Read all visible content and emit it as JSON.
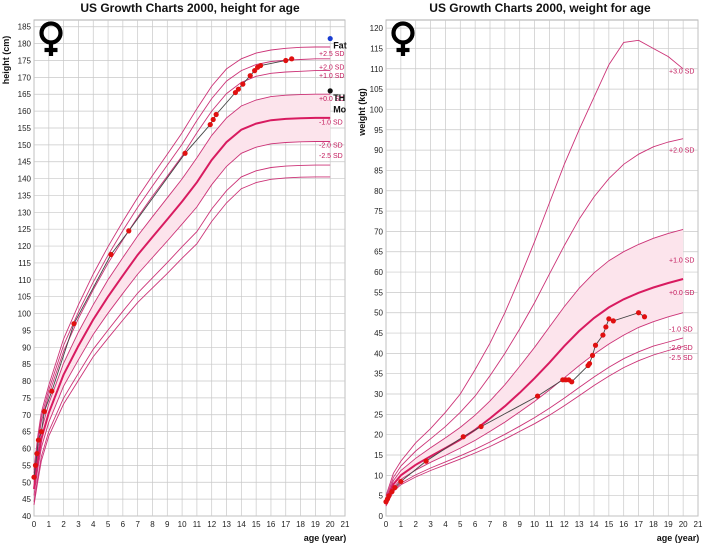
{
  "colors": {
    "curve": "#cc3377",
    "median": "#d81b60",
    "band": "#fce4ec",
    "patient_line": "#444444",
    "patient_point": "#e01010",
    "father": "#1a3dd1",
    "target": "#111111",
    "grid": "#c8c8c8"
  },
  "icons": [
    "female-symbol-icon",
    "female-symbol-icon"
  ],
  "chart_data": [
    {
      "type": "line",
      "title": "US Growth Charts 2000, height for age",
      "xlabel": "age (year)",
      "ylabel": "height (cm)",
      "xlim": [
        0,
        21
      ],
      "ylim": [
        40,
        187
      ],
      "xticks": [
        "0",
        "1",
        "2",
        "3",
        "4",
        "5",
        "6",
        "7",
        "8",
        "9",
        "10",
        "11",
        "12",
        "13",
        "14",
        "15",
        "16",
        "17",
        "18",
        "19",
        "20",
        "21"
      ],
      "yticks": [
        "40",
        "45",
        "50",
        "55",
        "60",
        "65",
        "70",
        "75",
        "80",
        "85",
        "90",
        "95",
        "100",
        "105",
        "110",
        "115",
        "120",
        "125",
        "130",
        "135",
        "140",
        "145",
        "150",
        "155",
        "160",
        "165",
        "170",
        "175",
        "180",
        "185"
      ],
      "ytick_values": [
        40,
        45,
        50,
        55,
        60,
        65,
        70,
        75,
        80,
        85,
        90,
        95,
        100,
        105,
        110,
        115,
        120,
        125,
        130,
        135,
        140,
        145,
        150,
        155,
        160,
        165,
        170,
        175,
        180,
        185
      ],
      "x": [
        0,
        0.25,
        0.5,
        1,
        2,
        3,
        4,
        5,
        6,
        7,
        8,
        9,
        10,
        11,
        12,
        13,
        14,
        15,
        16,
        17,
        18,
        19,
        20
      ],
      "series": [
        {
          "label": "+3.0 SD",
          "values": [
            53.7,
            63.5,
            70.8,
            78.8,
            92.5,
            102.6,
            111.7,
            119.8,
            127.3,
            134.4,
            140.9,
            147.2,
            153.6,
            160.7,
            167.4,
            172.5,
            175.5,
            177.2,
            178.1,
            178.6,
            178.9,
            179.0,
            179.0
          ]
        },
        {
          "label": "+2.5 SD",
          "values": [
            52.7,
            62.2,
            69.4,
            77.4,
            90.6,
            100.5,
            109.3,
            117.3,
            124.6,
            131.5,
            137.8,
            144.0,
            150.2,
            157.2,
            163.7,
            168.9,
            172.0,
            173.8,
            174.7,
            175.1,
            175.3,
            175.5,
            175.5
          ]
        },
        {
          "label": "+2.0 SD",
          "values": [
            51.8,
            61.1,
            68.1,
            76.0,
            88.8,
            98.5,
            107.0,
            114.9,
            121.9,
            128.6,
            134.8,
            140.7,
            146.7,
            153.6,
            160.0,
            165.2,
            168.5,
            170.3,
            171.2,
            171.6,
            171.8,
            172.0,
            172.0
          ]
        },
        {
          "label": "+1.0 SD",
          "values": [
            49.9,
            58.6,
            65.5,
            73.3,
            85.3,
            94.5,
            102.6,
            110.0,
            116.6,
            123.0,
            128.7,
            134.3,
            139.9,
            146.2,
            152.8,
            158.0,
            161.5,
            163.3,
            164.3,
            164.7,
            164.9,
            165.0,
            165.0
          ]
        },
        {
          "label": "+0.0 SD",
          "values": [
            48.0,
            56.2,
            62.9,
            70.6,
            81.9,
            90.4,
            98.2,
            105.0,
            111.3,
            117.4,
            122.7,
            127.9,
            133.2,
            138.9,
            145.5,
            150.8,
            154.5,
            156.3,
            157.3,
            157.7,
            157.9,
            158.0,
            158.0
          ]
        },
        {
          "label": "-1.0 SD",
          "values": [
            46.1,
            53.8,
            60.3,
            67.8,
            78.5,
            86.3,
            93.8,
            100.1,
            106.0,
            111.7,
            116.6,
            121.5,
            126.5,
            131.6,
            138.2,
            143.6,
            147.5,
            149.3,
            150.3,
            150.7,
            150.9,
            151.0,
            151.0
          ]
        },
        {
          "label": "-2.0 SD",
          "values": [
            44.2,
            51.3,
            57.7,
            65.1,
            75.0,
            82.3,
            89.4,
            95.1,
            100.7,
            106.1,
            110.6,
            115.1,
            119.8,
            124.3,
            131.0,
            136.4,
            140.5,
            142.3,
            143.3,
            143.7,
            143.9,
            144.0,
            144.0
          ]
        },
        {
          "label": "-2.5 SD",
          "values": [
            43.3,
            50.1,
            56.4,
            63.7,
            73.2,
            80.2,
            87.2,
            92.7,
            98.1,
            103.3,
            107.6,
            111.9,
            116.4,
            120.7,
            127.3,
            132.8,
            137.0,
            138.8,
            139.8,
            140.2,
            140.4,
            140.5,
            140.5
          ]
        }
      ],
      "sd_labels": [
        {
          "text": "+2.5 SD",
          "y": 177.0
        },
        {
          "text": "+2.0 SD",
          "y": 173.0
        },
        {
          "text": "+1.0 SD",
          "y": 170.5
        },
        {
          "text": "+0.0 SD",
          "y": 163.8
        },
        {
          "text": "-1.0 SD",
          "y": 156.8
        },
        {
          "text": "-2.0 SD",
          "y": 150.0
        },
        {
          "text": "-2.5 SD",
          "y": 146.8
        }
      ],
      "patient": {
        "x": [
          0,
          0.1,
          0.2,
          0.3,
          0.5,
          0.7,
          1.2,
          2.7,
          5.2,
          6.4,
          10.2,
          11.9,
          12.1,
          12.3,
          13.6,
          13.8,
          14.1,
          14.6,
          14.9,
          15.1,
          15.3,
          17.0,
          17.4
        ],
        "y": [
          51.5,
          55.0,
          58.5,
          62.5,
          65.0,
          71.0,
          77.0,
          97.0,
          117.5,
          124.5,
          147.5,
          156.0,
          157.5,
          159.0,
          165.5,
          166.5,
          168.0,
          170.5,
          172.0,
          173.0,
          173.5,
          175.0,
          175.5
        ]
      },
      "annotations": [
        {
          "label": "Fat",
          "x": 20.0,
          "y": 181.5,
          "marker": "father"
        },
        {
          "label": "TH",
          "x": 20.0,
          "y": 166.0,
          "marker": "target"
        },
        {
          "label": "Mo",
          "x": 20.0,
          "y": 162.5,
          "marker": "none"
        }
      ]
    },
    {
      "type": "line",
      "title": "US Growth Charts 2000, weight for age",
      "xlabel": "age (year)",
      "ylabel": "weight (kg)",
      "xlim": [
        0,
        21
      ],
      "ylim": [
        0,
        122
      ],
      "xticks": [
        "0",
        "1",
        "2",
        "3",
        "4",
        "5",
        "6",
        "7",
        "8",
        "9",
        "10",
        "11",
        "12",
        "13",
        "14",
        "15",
        "16",
        "17",
        "18",
        "19",
        "20",
        "21"
      ],
      "yticks": [
        "0",
        "5",
        "10",
        "15",
        "20",
        "25",
        "30",
        "35",
        "40",
        "45",
        "50",
        "55",
        "60",
        "65",
        "70",
        "75",
        "80",
        "85",
        "90",
        "95",
        "100",
        "105",
        "110",
        "115",
        "120"
      ],
      "ytick_values": [
        0,
        5,
        10,
        15,
        20,
        25,
        30,
        35,
        40,
        45,
        50,
        55,
        60,
        65,
        70,
        75,
        80,
        85,
        90,
        95,
        100,
        105,
        110,
        115,
        120
      ],
      "x": [
        0,
        0.5,
        1,
        2,
        3,
        4,
        5,
        6,
        7,
        8,
        9,
        10,
        11,
        12,
        13,
        14,
        15,
        16,
        17,
        18,
        19,
        20
      ],
      "series": [
        {
          "label": "+3.0 SD",
          "values": [
            5.0,
            10.5,
            13.5,
            18.0,
            21.5,
            25.5,
            30.0,
            36.0,
            42.5,
            50.0,
            58.5,
            67.5,
            77.0,
            86.5,
            95.0,
            103.0,
            111.0,
            116.5,
            117.0,
            115.0,
            113.0,
            110.0
          ]
        },
        {
          "label": "+2.0 SD",
          "values": [
            4.4,
            9.5,
            12.3,
            16.0,
            19.0,
            22.0,
            25.5,
            29.5,
            34.5,
            40.0,
            46.0,
            52.5,
            59.5,
            66.5,
            73.0,
            78.5,
            83.0,
            86.5,
            89.0,
            90.8,
            92.0,
            92.8
          ]
        },
        {
          "label": "+1.0 SD",
          "values": [
            3.9,
            8.7,
            11.2,
            14.2,
            16.8,
            19.2,
            21.8,
            24.8,
            28.3,
            32.3,
            36.8,
            41.5,
            46.5,
            51.5,
            56.0,
            59.8,
            62.8,
            65.0,
            66.8,
            68.3,
            69.5,
            70.5
          ]
        },
        {
          "label": "+0.0 SD",
          "values": [
            3.4,
            7.8,
            10.0,
            12.6,
            14.7,
            16.7,
            18.8,
            21.2,
            24.0,
            27.0,
            30.3,
            33.9,
            37.7,
            41.8,
            45.5,
            48.7,
            51.3,
            53.3,
            54.9,
            56.2,
            57.3,
            58.3
          ]
        },
        {
          "label": "-1.0 SD",
          "values": [
            3.0,
            7.0,
            9.0,
            11.3,
            13.2,
            14.9,
            16.7,
            18.6,
            20.8,
            23.1,
            25.6,
            28.2,
            31.0,
            34.0,
            37.0,
            39.8,
            42.3,
            44.5,
            46.4,
            47.8,
            49.0,
            50.0
          ]
        },
        {
          "label": "-2.0 SD",
          "values": [
            2.6,
            6.3,
            8.1,
            10.1,
            11.8,
            13.3,
            14.8,
            16.4,
            18.2,
            20.1,
            22.1,
            24.2,
            26.5,
            29.0,
            31.6,
            34.2,
            36.6,
            38.7,
            40.4,
            41.8,
            42.8,
            43.8
          ]
        },
        {
          "label": "-2.5 SD",
          "values": [
            2.4,
            6.0,
            7.7,
            9.6,
            11.2,
            12.6,
            14.0,
            15.5,
            17.1,
            18.9,
            20.8,
            22.7,
            24.8,
            27.1,
            29.6,
            32.1,
            34.4,
            36.5,
            38.2,
            39.6,
            40.7,
            41.7
          ]
        }
      ],
      "sd_labels": [
        {
          "text": "+3.0 SD",
          "y": 109.5
        },
        {
          "text": "+2.0 SD",
          "y": 90.0
        },
        {
          "text": "+1.0 SD",
          "y": 63.0
        },
        {
          "text": "+0.0 SD",
          "y": 55.0
        },
        {
          "text": "-1.0 SD",
          "y": 46.0
        },
        {
          "text": "-2.0 SD",
          "y": 41.5
        },
        {
          "text": "-2.5 SD",
          "y": 39.0
        }
      ],
      "patient": {
        "x": [
          0,
          0.1,
          0.2,
          0.4,
          0.6,
          1.0,
          2.7,
          5.2,
          6.4,
          10.2,
          11.9,
          12.1,
          12.3,
          12.5,
          13.6,
          13.7,
          13.9,
          14.1,
          14.6,
          14.8,
          15.0,
          15.3,
          17.0,
          17.4
        ],
        "y": [
          3.5,
          4.2,
          5.0,
          6.0,
          7.0,
          8.5,
          13.5,
          19.5,
          22.0,
          29.5,
          33.5,
          33.5,
          33.5,
          33.0,
          37.0,
          37.5,
          39.5,
          42.0,
          44.5,
          46.5,
          48.5,
          48.0,
          50.0,
          49.0
        ]
      },
      "annotations": []
    }
  ]
}
